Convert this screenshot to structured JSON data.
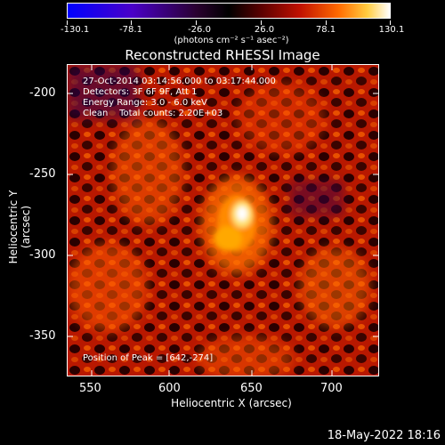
{
  "colorbar": {
    "ticks": [
      "-130.1",
      "-78.1",
      "-26.0",
      "26.0",
      "78.1",
      "130.1"
    ],
    "units": "(photons cm⁻² s⁻¹ asec⁻²)"
  },
  "title": "Reconstructed RHESSI Image",
  "info": {
    "time_range": "27-Oct-2014 03:14:56.000 to 03:17:44.000",
    "detectors": "Detectors: 3F 6F 9F, Att 1",
    "energy": "Energy Range: 3.0 - 6.0 keV",
    "clean": "Clean    Total counts: 2.20E+03",
    "peak": "Position of Peak = [642,-274]"
  },
  "axes": {
    "xlabel": "Heliocentric X (arcsec)",
    "ylabel": "Heliocentric Y (arcsec)",
    "xticks": [
      "550",
      "600",
      "650",
      "700"
    ],
    "yticks": [
      "-200",
      "-250",
      "-300",
      "-350"
    ]
  },
  "footer": "18-May-2022 18:16",
  "colors": {
    "background": "#000000",
    "peak": "#ffffff",
    "hot": "#ff7a00",
    "mid": "#c01000"
  }
}
